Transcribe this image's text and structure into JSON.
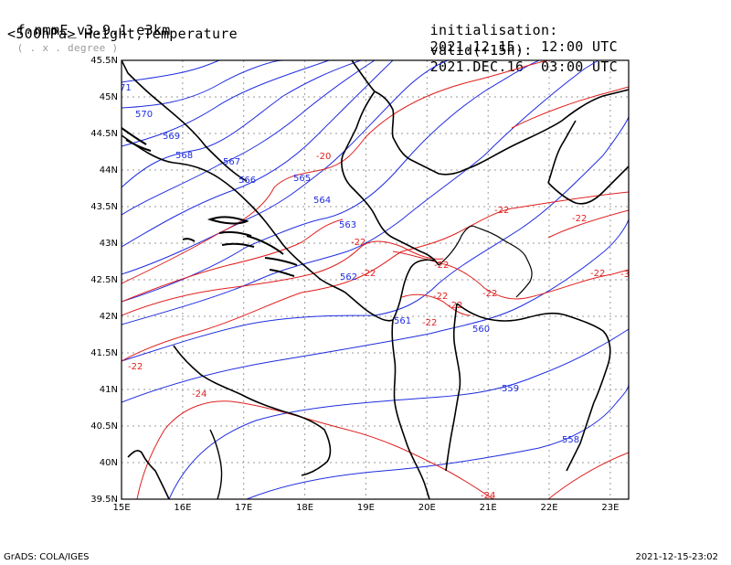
{
  "header": {
    "model": "f-nmmE_v3.9.1-e3km",
    "unit_note": "( . x . degree )",
    "level_field": "<500hPa> Height,Temperature",
    "init_label": "initialisation:",
    "init_value": "2021.12.15.  12:00 UTC",
    "valid_label": "valid(+15h):",
    "valid_value": "2021.DEC.16  03:00 UTC"
  },
  "footer": {
    "credit": "GrADS: COLA/IGES",
    "timestamp": "2021-12-15-23:02"
  },
  "axes": {
    "lon_min": 15,
    "lon_max": 23.3,
    "lat_min": 39.5,
    "lat_max": 45.5,
    "x_ticks": [
      "15E",
      "16E",
      "17E",
      "18E",
      "19E",
      "20E",
      "21E",
      "22E",
      "23E"
    ],
    "y_ticks": [
      "39.5N",
      "40N",
      "40.5N",
      "41N",
      "41.5N",
      "42N",
      "42.5N",
      "43N",
      "43.5N",
      "44N",
      "44.5N",
      "45N",
      "45.5N"
    ]
  },
  "colors": {
    "height": "#1f2de0",
    "temperature": "#e0201f",
    "border": "#000000",
    "grid": "#9a9a9a"
  },
  "height_labels": [
    "570",
    "569",
    "568",
    "567",
    "566",
    "565",
    "564",
    "563",
    "562",
    "561",
    "560",
    "559",
    "558",
    "71"
  ],
  "temperature_labels": [
    "-20",
    "-22",
    "-22",
    "-22",
    "-22",
    "-22",
    "-22",
    "-22",
    "-22",
    "-22",
    "-22",
    "-22",
    "-24",
    "-24",
    "-3"
  ]
}
